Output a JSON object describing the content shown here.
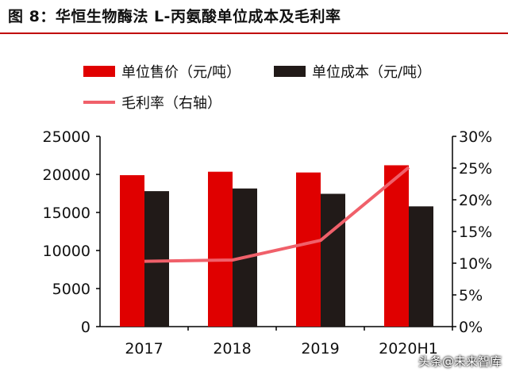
{
  "title": "图 8：华恒生物酶法 L-丙氨酸单位成本及毛利率",
  "watermark": "头条@未来智库",
  "colors": {
    "price": "#e00000",
    "cost": "#211a18",
    "margin": "#f0606a"
  },
  "chart_data": {
    "type": "bar",
    "title": "图 8：华恒生物酶法 L-丙氨酸单位成本及毛利率",
    "categories": [
      "2017",
      "2018",
      "2019",
      "2020H1"
    ],
    "series": [
      {
        "name": "单位售价（元/吨）",
        "type": "bar",
        "axis": "left",
        "values": [
          19900,
          20350,
          20250,
          21200
        ]
      },
      {
        "name": "单位成本（元/吨）",
        "type": "bar",
        "axis": "left",
        "values": [
          17800,
          18150,
          17450,
          15800
        ]
      },
      {
        "name": "毛利率（右轴）",
        "type": "line",
        "axis": "right",
        "values": [
          10.3,
          10.5,
          13.6,
          25.1
        ]
      }
    ],
    "ylim": [
      0,
      25000
    ],
    "yticks": [
      "0",
      "5000",
      "10000",
      "15000",
      "20000",
      "25000"
    ],
    "y2lim": [
      0,
      30
    ],
    "y2ticks": [
      "0%",
      "5%",
      "10%",
      "15%",
      "20%",
      "25%",
      "30%"
    ],
    "legend": "top",
    "grid": false
  }
}
